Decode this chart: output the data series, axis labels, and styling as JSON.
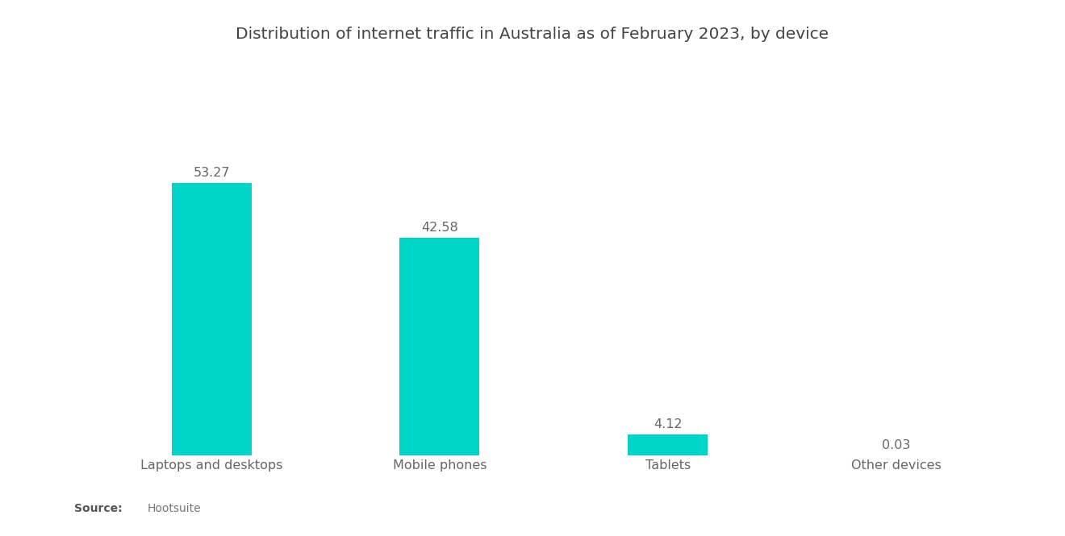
{
  "title": "Distribution of internet traffic in Australia as of February 2023, by device",
  "categories": [
    "Laptops and desktops",
    "Mobile phones",
    "Tablets",
    "Other devices"
  ],
  "values": [
    53.27,
    42.58,
    4.12,
    0.03
  ],
  "bar_color": "#00D4C8",
  "background_color": "#ffffff",
  "title_fontsize": 14.5,
  "label_fontsize": 11.5,
  "value_fontsize": 11.5,
  "ylim": [
    0,
    65
  ],
  "bar_width": 0.35
}
